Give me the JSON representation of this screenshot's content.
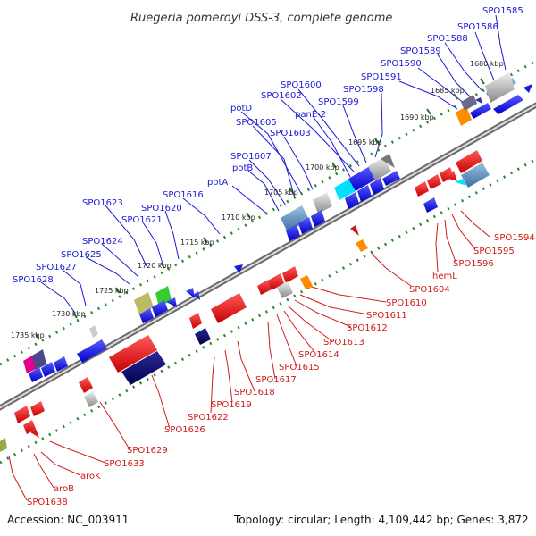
{
  "title": "Ruegeria pomeroyi DSS-3, complete genome",
  "footer": {
    "accession": "Accession: NC_003911",
    "summary": "Topology: circular; Length: 4,109,442 bp; Genes: 3,872"
  },
  "colors": {
    "forward_label": "#1a1ad6",
    "reverse_label": "#d11a1a",
    "backbone": "#7a7a7a",
    "dots": "#2a8a2a",
    "ticks": "#1a7a1a"
  },
  "kbp_labels": [
    "1680 kbp",
    "1685 kbp",
    "1690 kbp",
    "1695 kbp",
    "1700 kbp",
    "1705 kbp",
    "1710 kbp",
    "1715 kbp",
    "1720 kbp",
    "1725 kbp",
    "1730 kbp",
    "1735 kbp"
  ],
  "forward_labels": [
    "SPO1585",
    "SPO1586",
    "SPO1588",
    "SPO1589",
    "SPO1590",
    "SPO1591",
    "SPO1598",
    "SPO1599",
    "SPO1600",
    "SPO1602",
    "panE-2",
    "potD",
    "SPO1605",
    "SPO1603",
    "SPO1607",
    "potB",
    "potA",
    "SPO1616",
    "SPO1623",
    "SPO1620",
    "SPO1621",
    "SPO1624",
    "SPO1625",
    "SPO1627",
    "SPO1628"
  ],
  "reverse_labels": [
    "SPO1594",
    "SPO1595",
    "SPO1596",
    "hemL",
    "SPO1604",
    "SPO1610",
    "SPO1611",
    "SPO1612",
    "SPO1613",
    "SPO1614",
    "SPO1615",
    "SPO1617",
    "SPO1618",
    "SPO1619",
    "SPO1622",
    "SPO1626",
    "SPO1629",
    "SPO1633",
    "aroK",
    "aroB",
    "SPO1638"
  ]
}
